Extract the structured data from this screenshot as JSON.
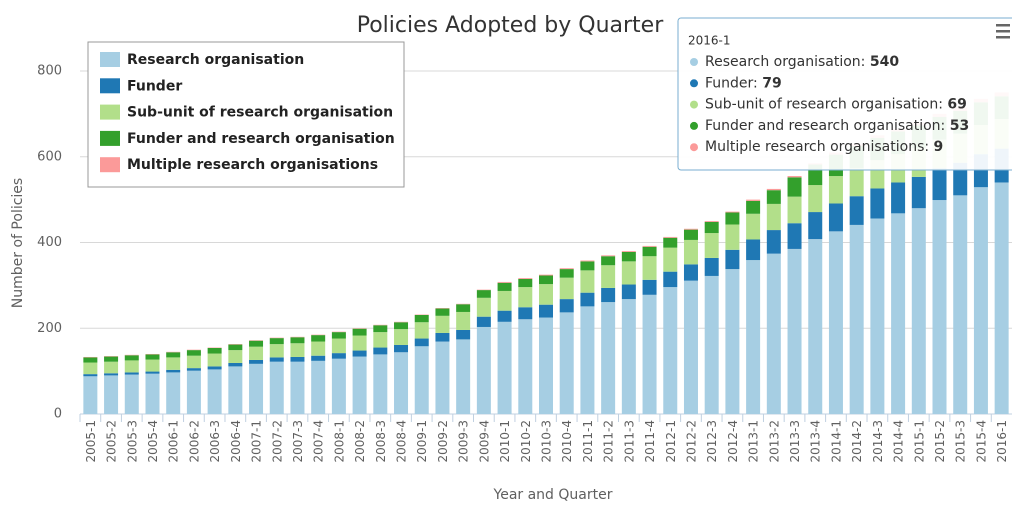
{
  "chart_data": {
    "type": "stacked-bar",
    "title": "Policies Adopted by Quarter",
    "x_label": "Year and Quarter",
    "y_label": "Number of Policies",
    "categories": [
      "2005-1",
      "2005-2",
      "2005-3",
      "2005-4",
      "2006-1",
      "2006-2",
      "2006-3",
      "2006-4",
      "2007-1",
      "2007-2",
      "2007-3",
      "2007-4",
      "2008-1",
      "2008-2",
      "2008-3",
      "2008-4",
      "2009-1",
      "2009-2",
      "2009-3",
      "2009-4",
      "2010-1",
      "2010-2",
      "2010-3",
      "2010-4",
      "2011-1",
      "2011-2",
      "2011-3",
      "2011-4",
      "2012-1",
      "2012-2",
      "2012-3",
      "2012-4",
      "2013-1",
      "2013-2",
      "2013-3",
      "2013-4",
      "2014-1",
      "2014-2",
      "2014-3",
      "2014-4",
      "2015-1",
      "2015-2",
      "2015-3",
      "2015-4",
      "2016-1"
    ],
    "series": [
      {
        "name": "Research organisation",
        "color": "#a6cee3",
        "values": [
          88,
          90,
          92,
          94,
          97,
          101,
          104,
          111,
          117,
          122,
          122,
          124,
          129,
          134,
          139,
          144,
          158,
          169,
          174,
          203,
          215,
          221,
          225,
          237,
          251,
          261,
          268,
          278,
          296,
          311,
          322,
          338,
          359,
          374,
          385,
          408,
          426,
          441,
          456,
          468,
          480,
          499,
          510,
          529,
          540
        ]
      },
      {
        "name": "Funder",
        "color": "#1f78b4",
        "values": [
          5,
          5,
          5,
          5,
          6,
          6,
          7,
          8,
          9,
          10,
          11,
          12,
          13,
          14,
          16,
          17,
          18,
          20,
          22,
          24,
          26,
          28,
          30,
          31,
          32,
          33,
          34,
          35,
          36,
          38,
          42,
          45,
          48,
          55,
          60,
          63,
          65,
          67,
          70,
          72,
          73,
          74,
          76,
          77,
          79
        ]
      },
      {
        "name": "Sub-unit of research organisation",
        "color": "#b2df8a",
        "values": [
          27,
          27,
          28,
          28,
          29,
          29,
          30,
          30,
          31,
          31,
          32,
          33,
          34,
          35,
          36,
          37,
          38,
          40,
          42,
          44,
          46,
          47,
          48,
          50,
          52,
          53,
          54,
          55,
          56,
          57,
          58,
          59,
          60,
          61,
          62,
          63,
          64,
          65,
          66,
          66,
          67,
          67,
          68,
          68,
          69
        ]
      },
      {
        "name": "Funder and research organisation",
        "color": "#33a02c",
        "values": [
          12,
          12,
          12,
          12,
          12,
          13,
          13,
          13,
          14,
          14,
          14,
          15,
          15,
          16,
          16,
          16,
          17,
          17,
          18,
          18,
          19,
          19,
          20,
          20,
          21,
          21,
          22,
          22,
          23,
          24,
          26,
          28,
          30,
          32,
          45,
          48,
          50,
          52,
          52,
          53,
          53,
          53,
          53,
          53,
          53
        ]
      },
      {
        "name": "Multiple research organisations",
        "color": "#fb9a99",
        "values": [
          1,
          1,
          1,
          1,
          1,
          1,
          1,
          1,
          1,
          1,
          1,
          1,
          1,
          1,
          1,
          1,
          1,
          1,
          1,
          1,
          2,
          2,
          2,
          2,
          2,
          2,
          2,
          2,
          2,
          2,
          2,
          2,
          3,
          3,
          3,
          3,
          5,
          5,
          6,
          6,
          7,
          7,
          8,
          8,
          9
        ]
      }
    ],
    "ylim": [
      0,
      800
    ],
    "yticks": [
      0,
      200,
      400,
      600,
      800
    ],
    "grid": true,
    "legend": "top-left",
    "tooltip_index": 44
  }
}
